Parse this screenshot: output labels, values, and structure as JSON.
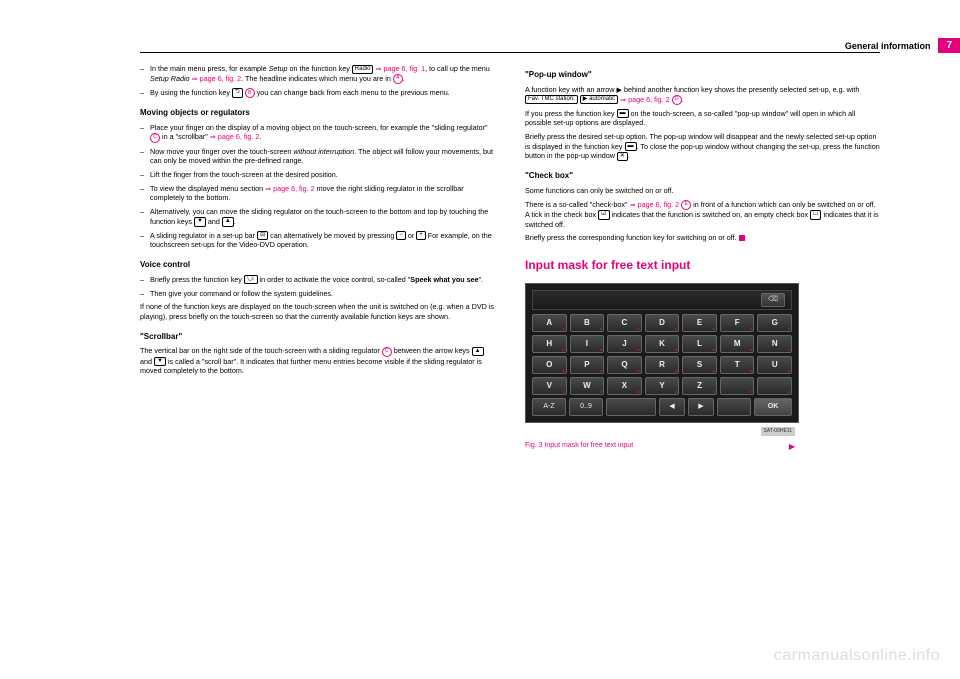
{
  "header": {
    "section_title": "General information",
    "page_number": "7"
  },
  "left_column": {
    "items": [
      {
        "pre": "In the main menu press, for example ",
        "italic1": "Setup",
        "mid1": " on the function key ",
        "key1": "Radio",
        "link1": " ⇒ page 6, fig. 1",
        "mid2": ", to call up the menu ",
        "italic2": "Setup Radio",
        "link2": " ⇒ page 6, fig. 2",
        "mid3": ". The headline indicates which menu you are in ",
        "circle": "A",
        "end": "."
      },
      {
        "pre": "By using the function key ",
        "key1": "⮌",
        "circle": "B",
        "end": " you can change back from each menu to the previous menu."
      }
    ],
    "sub1": "Moving objects or regulators",
    "items2": [
      {
        "pre": "Place your finger on the display of a moving object on the touch-screen, for example the \"sliding regulator\" ",
        "circle": "C",
        "mid": " in a \"scrollbar\" ",
        "link": "⇒ page 6, fig. 2",
        "end": "."
      },
      {
        "pre": "Now move your finger over the touch-screen ",
        "italic": "without interruption",
        "end": ". The object will follow your movements, but can only be moved within the pre-defined range."
      },
      {
        "text": "Lift the finger from the touch-screen at the desired position."
      },
      {
        "pre": "To view the displayed menu section ",
        "link": "⇒ page 6, fig. 2",
        "end": " move the right sliding regulator in the scrollbar completely to the bottom."
      },
      {
        "pre": "Alternatively, you can move the sliding regulator on the touch-screen to the bottom and top by touching the function keys ",
        "key1": "▼",
        "mid": " and ",
        "key2": "▲",
        "end": "."
      },
      {
        "pre": "A sliding regulator in a set-up bar ",
        "key1": "⊟",
        "mid1": " can alternatively be moved by pressing ",
        "key2": "−",
        "mid2": " or ",
        "key3": "+",
        "end": " For example, on the touchscreen set-ups for the Video-DVD operation."
      }
    ],
    "sub2": "Voice control",
    "items3": [
      {
        "pre": "Briefly press the function key ",
        "key": "🗣",
        "mid": " in order to activate the voice control, so-called \"",
        "bold": "Speek what you see",
        "end": "\"."
      },
      {
        "text": "Then give your command or follow the system guidelines."
      }
    ],
    "para1": "If none of the function keys are displayed on the touch-screen when the unit is switched on (e.g. when a DVD is playing), press briefly on the touch-screen so that the currently available function keys are shown.",
    "sub3": "\"Scrollbar\"",
    "para2_pre": "The vertical bar on the right side of the touch-screen with a sliding regulator ",
    "para2_circle": "C",
    "para2_mid": " between the arrow keys ",
    "para2_key1": "▲",
    "para2_mid2": " and ",
    "para2_key2": "▼",
    "para2_end": " is called a \"scroll bar\". It indicates that further menu entries become visible if the sliding regulator is moved completely to the bottom."
  },
  "right_column": {
    "sub1": "\"Pop-up window\"",
    "para1_pre": "A function key with an arrow ",
    "para1_arrow": "▶",
    "para1_mid": " behind another function key shows the presently selected set-up, e.g. with ",
    "para1_key1": "Fav. TMC station:",
    "para1_key2": "▶ automatic",
    "para1_link": " ⇒ page 6, fig. 2",
    "para1_circle": "D",
    "para1_end": ".",
    "para2_pre": "If you press the function key ",
    "para2_key": "▬",
    "para2_end": " on the touch-screen, a so-called \"pop-up window\" will open in which all possible set-up options are displayed.",
    "para3_pre": "Briefly press the desired set-up option. The pop-up window will disappear and the newly selected set-up option is displayed in the function key ",
    "para3_key1": "▬",
    "para3_mid": ". To close the pop-up window without changing the set-up, press the function button in the pop-up window ",
    "para3_key2": "✕",
    "para3_end": ".",
    "sub2": "\"Check box\"",
    "para4": "Some functions can only be switched on or off.",
    "para5_pre": "There is a so-called \"check-box\" ",
    "para5_link": "⇒ page 6, fig. 2",
    "para5_circle": "E",
    "para5_mid": " in front of a function which can only be switched on or off. A tick in the check box ",
    "para5_key1": "☑",
    "para5_mid2": " indicates that the function is switched on, an empty check box ",
    "para5_key2": "☐",
    "para5_end": " indicates that it is switched off.",
    "para6": "Briefly press the corresponding function key for switching on or off.",
    "section": "Input mask for free text input",
    "keypad": {
      "rows": [
        [
          "A",
          "B",
          "C",
          "D",
          "E",
          "F",
          "G"
        ],
        [
          "H",
          "I",
          "J",
          "K",
          "L",
          "M",
          "N"
        ],
        [
          "O",
          "P",
          "Q",
          "R",
          "S",
          "T",
          "U"
        ],
        [
          "V",
          "W",
          "X",
          "Y",
          "Z",
          " ",
          " "
        ]
      ],
      "bottom": [
        "A-Z",
        "0..9",
        " ",
        "◀",
        "▶",
        " ",
        "OK"
      ],
      "del": "⌫",
      "fig_id": "SAT-00HE11"
    },
    "fig_caption": "Fig. 3  Input mask for free text input"
  },
  "watermark": "carmanualsonline.info"
}
